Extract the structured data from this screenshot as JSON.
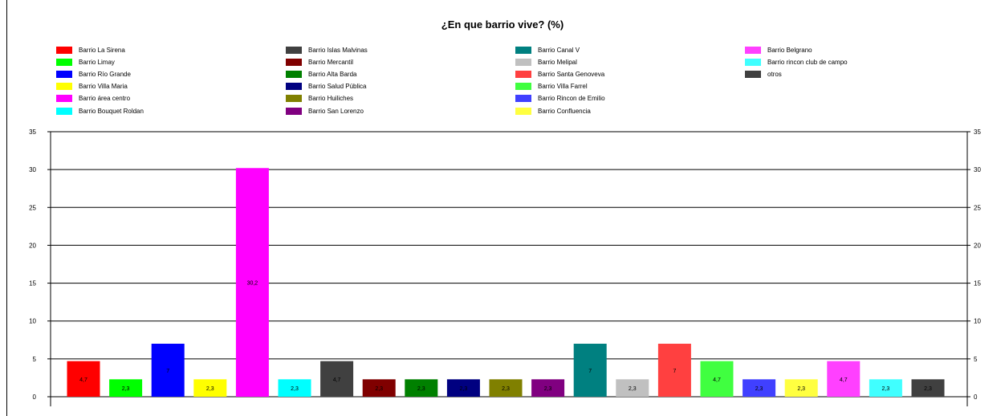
{
  "chart_data": {
    "type": "bar",
    "title": "¿En que barrio vive? (%)",
    "xlabel": "",
    "ylabel": "",
    "ylim": [
      0,
      35
    ],
    "yticks": [
      0,
      5,
      10,
      15,
      20,
      25,
      30,
      35
    ],
    "grid": true,
    "legend_placement": "top",
    "series": [
      {
        "name": "Barrio La Sirena",
        "value": 4.7,
        "label": "4,7",
        "color": "#ff0000"
      },
      {
        "name": "Barrio Limay",
        "value": 2.3,
        "label": "2,3",
        "color": "#00ff00"
      },
      {
        "name": "Barrio Río Grande",
        "value": 7,
        "label": "7",
        "color": "#0000ff"
      },
      {
        "name": "Barrio Villa Maria",
        "value": 2.3,
        "label": "2,3",
        "color": "#ffff00"
      },
      {
        "name": "Barrio área centro",
        "value": 30.2,
        "label": "30,2",
        "color": "#ff00ff"
      },
      {
        "name": "Barrio Bouquet Roldan",
        "value": 2.3,
        "label": "2,3",
        "color": "#00ffff"
      },
      {
        "name": "Barrio Islas Malvinas",
        "value": 4.7,
        "label": "4,7",
        "color": "#404040"
      },
      {
        "name": "Barrio Mercantil",
        "value": 2.3,
        "label": "2,3",
        "color": "#800000"
      },
      {
        "name": "Barrio Alta Barda",
        "value": 2.3,
        "label": "2,3",
        "color": "#008000"
      },
      {
        "name": "Barrio Salud Pública",
        "value": 2.3,
        "label": "2,3",
        "color": "#000080"
      },
      {
        "name": "Barrio Huiliches",
        "value": 2.3,
        "label": "2,3",
        "color": "#808000"
      },
      {
        "name": "Barrio San Lorenzo",
        "value": 2.3,
        "label": "2,3",
        "color": "#800080"
      },
      {
        "name": "Barrio Canal V",
        "value": 7,
        "label": "7",
        "color": "#008080"
      },
      {
        "name": "Barrio Melipal",
        "value": 2.3,
        "label": "2,3",
        "color": "#c0c0c0"
      },
      {
        "name": "Barrio Santa Genoveva",
        "value": 7,
        "label": "7",
        "color": "#ff4040"
      },
      {
        "name": "Barrio Villa Farrel",
        "value": 4.7,
        "label": "4,7",
        "color": "#40ff40"
      },
      {
        "name": "Barrio Rincon de Emilio",
        "value": 2.3,
        "label": "2,3",
        "color": "#4040ff"
      },
      {
        "name": "Barrio Confluencia",
        "value": 2.3,
        "label": "2,3",
        "color": "#ffff40"
      },
      {
        "name": "Barrio Belgrano",
        "value": 4.7,
        "label": "4,7",
        "color": "#ff40ff"
      },
      {
        "name": "Barrio rincon club de campo",
        "value": 2.3,
        "label": "2,3",
        "color": "#40ffff"
      },
      {
        "name": "otros",
        "value": 2.3,
        "label": "2,3",
        "color": "#404040"
      }
    ]
  }
}
